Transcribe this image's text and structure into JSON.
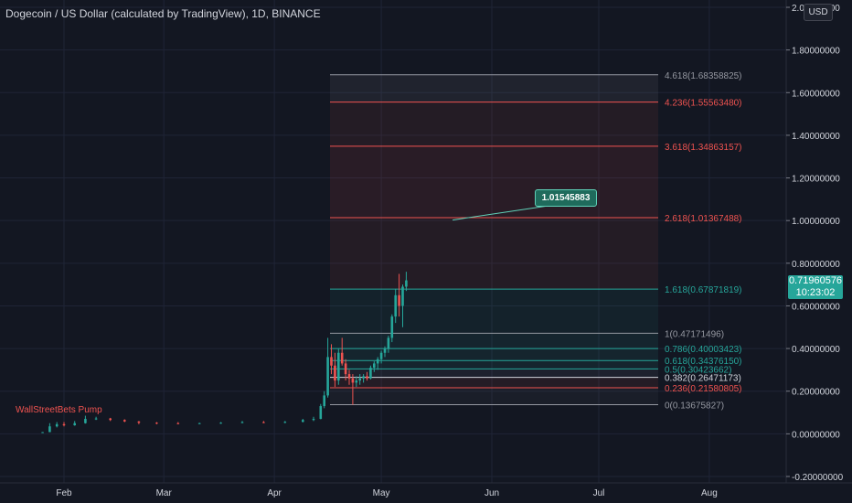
{
  "header": {
    "title": "Dogecoin / US Dollar (calculated by TradingView), 1D, BINANCE",
    "currency_button": "USD"
  },
  "current_price": {
    "value": "0.71960576",
    "countdown": "10:23:02"
  },
  "callout": {
    "label": "1.01545883",
    "value": 1.01545883
  },
  "annotations": [
    {
      "text": "WallStreetBets Pump",
      "value": 0.07
    }
  ],
  "colors": {
    "background": "#131722",
    "text": "#d1d4dc",
    "candle_up": "#26a69a",
    "candle_down": "#ef5350",
    "fib_red": "#ef5350",
    "fib_teal": "#26a69a",
    "fib_grey": "#9598a1"
  },
  "chart_data": {
    "type": "candlestick",
    "title": "Dogecoin / US Dollar (calculated by TradingView), 1D, BINANCE",
    "ylim": [
      -0.2,
      2.0
    ],
    "y_ticks": [
      {
        "value": 2.0,
        "label": "2.00000000"
      },
      {
        "value": 1.8,
        "label": "1.80000000"
      },
      {
        "value": 1.6,
        "label": "1.60000000"
      },
      {
        "value": 1.4,
        "label": "1.40000000"
      },
      {
        "value": 1.2,
        "label": "1.20000000"
      },
      {
        "value": 1.0,
        "label": "1.00000000"
      },
      {
        "value": 0.8,
        "label": "0.80000000"
      },
      {
        "value": 0.6,
        "label": "0.60000000"
      },
      {
        "value": 0.4,
        "label": "0.40000000"
      },
      {
        "value": 0.2,
        "label": "0.20000000"
      },
      {
        "value": 0.0,
        "label": "0.00000000"
      },
      {
        "value": -0.2,
        "label": "-0.20000000"
      }
    ],
    "x_ticks": [
      "Feb",
      "Mar",
      "Apr",
      "May",
      "Jun",
      "Jul",
      "Aug"
    ],
    "grid": true,
    "candles": [
      {
        "date": "2021-01-26",
        "o": 0.0075,
        "h": 0.0085,
        "l": 0.0072,
        "c": 0.008
      },
      {
        "date": "2021-01-28",
        "o": 0.008,
        "h": 0.05,
        "l": 0.0078,
        "c": 0.035
      },
      {
        "date": "2021-01-30",
        "o": 0.035,
        "h": 0.055,
        "l": 0.03,
        "c": 0.045
      },
      {
        "date": "2021-02-01",
        "o": 0.045,
        "h": 0.055,
        "l": 0.035,
        "c": 0.04
      },
      {
        "date": "2021-02-04",
        "o": 0.04,
        "h": 0.06,
        "l": 0.038,
        "c": 0.05
      },
      {
        "date": "2021-02-07",
        "o": 0.05,
        "h": 0.085,
        "l": 0.048,
        "c": 0.07
      },
      {
        "date": "2021-02-10",
        "o": 0.07,
        "h": 0.08,
        "l": 0.065,
        "c": 0.072
      },
      {
        "date": "2021-02-14",
        "o": 0.072,
        "h": 0.075,
        "l": 0.06,
        "c": 0.065
      },
      {
        "date": "2021-02-18",
        "o": 0.065,
        "h": 0.068,
        "l": 0.055,
        "c": 0.058
      },
      {
        "date": "2021-02-22",
        "o": 0.058,
        "h": 0.06,
        "l": 0.045,
        "c": 0.052
      },
      {
        "date": "2021-02-27",
        "o": 0.052,
        "h": 0.055,
        "l": 0.045,
        "c": 0.05
      },
      {
        "date": "2021-03-05",
        "o": 0.05,
        "h": 0.055,
        "l": 0.045,
        "c": 0.048
      },
      {
        "date": "2021-03-11",
        "o": 0.048,
        "h": 0.052,
        "l": 0.046,
        "c": 0.05
      },
      {
        "date": "2021-03-17",
        "o": 0.05,
        "h": 0.055,
        "l": 0.047,
        "c": 0.052
      },
      {
        "date": "2021-03-23",
        "o": 0.052,
        "h": 0.06,
        "l": 0.05,
        "c": 0.055
      },
      {
        "date": "2021-03-29",
        "o": 0.055,
        "h": 0.06,
        "l": 0.05,
        "c": 0.053
      },
      {
        "date": "2021-04-04",
        "o": 0.053,
        "h": 0.06,
        "l": 0.05,
        "c": 0.056
      },
      {
        "date": "2021-04-09",
        "o": 0.056,
        "h": 0.07,
        "l": 0.054,
        "c": 0.065
      },
      {
        "date": "2021-04-12",
        "o": 0.065,
        "h": 0.08,
        "l": 0.06,
        "c": 0.07
      },
      {
        "date": "2021-04-14",
        "o": 0.07,
        "h": 0.14,
        "l": 0.068,
        "c": 0.13
      },
      {
        "date": "2021-04-15",
        "o": 0.13,
        "h": 0.2,
        "l": 0.12,
        "c": 0.18
      },
      {
        "date": "2021-04-16",
        "o": 0.18,
        "h": 0.45,
        "l": 0.17,
        "c": 0.36
      },
      {
        "date": "2021-04-17",
        "o": 0.36,
        "h": 0.42,
        "l": 0.28,
        "c": 0.32
      },
      {
        "date": "2021-04-18",
        "o": 0.32,
        "h": 0.38,
        "l": 0.22,
        "c": 0.25
      },
      {
        "date": "2021-04-19",
        "o": 0.25,
        "h": 0.4,
        "l": 0.23,
        "c": 0.38
      },
      {
        "date": "2021-04-20",
        "o": 0.38,
        "h": 0.45,
        "l": 0.32,
        "c": 0.33
      },
      {
        "date": "2021-04-21",
        "o": 0.33,
        "h": 0.35,
        "l": 0.25,
        "c": 0.28
      },
      {
        "date": "2021-04-22",
        "o": 0.28,
        "h": 0.3,
        "l": 0.23,
        "c": 0.26
      },
      {
        "date": "2021-04-23",
        "o": 0.26,
        "h": 0.28,
        "l": 0.1367,
        "c": 0.24
      },
      {
        "date": "2021-04-24",
        "o": 0.24,
        "h": 0.27,
        "l": 0.22,
        "c": 0.25
      },
      {
        "date": "2021-04-25",
        "o": 0.25,
        "h": 0.28,
        "l": 0.23,
        "c": 0.26
      },
      {
        "date": "2021-04-26",
        "o": 0.26,
        "h": 0.28,
        "l": 0.24,
        "c": 0.27
      },
      {
        "date": "2021-04-27",
        "o": 0.27,
        "h": 0.29,
        "l": 0.25,
        "c": 0.26
      },
      {
        "date": "2021-04-28",
        "o": 0.26,
        "h": 0.32,
        "l": 0.255,
        "c": 0.31
      },
      {
        "date": "2021-04-29",
        "o": 0.31,
        "h": 0.34,
        "l": 0.29,
        "c": 0.33
      },
      {
        "date": "2021-04-30",
        "o": 0.33,
        "h": 0.36,
        "l": 0.3,
        "c": 0.35
      },
      {
        "date": "2021-05-01",
        "o": 0.35,
        "h": 0.39,
        "l": 0.33,
        "c": 0.38
      },
      {
        "date": "2021-05-02",
        "o": 0.38,
        "h": 0.41,
        "l": 0.36,
        "c": 0.4
      },
      {
        "date": "2021-05-03",
        "o": 0.4,
        "h": 0.46,
        "l": 0.38,
        "c": 0.45
      },
      {
        "date": "2021-05-04",
        "o": 0.45,
        "h": 0.56,
        "l": 0.43,
        "c": 0.55
      },
      {
        "date": "2021-05-05",
        "o": 0.55,
        "h": 0.68,
        "l": 0.52,
        "c": 0.65
      },
      {
        "date": "2021-05-06",
        "o": 0.65,
        "h": 0.75,
        "l": 0.55,
        "c": 0.6
      },
      {
        "date": "2021-05-07",
        "o": 0.6,
        "h": 0.7,
        "l": 0.5,
        "c": 0.69
      },
      {
        "date": "2021-05-08",
        "o": 0.69,
        "h": 0.76,
        "l": 0.67,
        "c": 0.7196
      }
    ],
    "fib_levels": [
      {
        "label": "4.618(1.68358825)",
        "ratio": 4.618,
        "value": 1.68358825,
        "color": "#9598a1"
      },
      {
        "label": "4.236(1.55563480)",
        "ratio": 4.236,
        "value": 1.5556348,
        "color": "#ef5350"
      },
      {
        "label": "3.618(1.34863157)",
        "ratio": 3.618,
        "value": 1.34863157,
        "color": "#ef5350"
      },
      {
        "label": "2.618(1.01367488)",
        "ratio": 2.618,
        "value": 1.01367488,
        "color": "#ef5350"
      },
      {
        "label": "1.618(0.67871819)",
        "ratio": 1.618,
        "value": 0.67871819,
        "color": "#26a69a"
      },
      {
        "label": "1(0.47171496)",
        "ratio": 1,
        "value": 0.47171496,
        "color": "#9598a1"
      },
      {
        "label": "0.786(0.40003423)",
        "ratio": 0.786,
        "value": 0.40003423,
        "color": "#26a69a"
      },
      {
        "label": "0.618(0.34376150)",
        "ratio": 0.618,
        "value": 0.3437615,
        "color": "#26a69a"
      },
      {
        "label": "0.5(0.30423662)",
        "ratio": 0.5,
        "value": 0.30423662,
        "color": "#26a69a"
      },
      {
        "label": "0.382(0.26471173)",
        "ratio": 0.382,
        "value": 0.26471173,
        "color": "#d1d4dc"
      },
      {
        "label": "0.236(0.21580805)",
        "ratio": 0.236,
        "value": 0.21580805,
        "color": "#ef5350"
      },
      {
        "label": "0(0.13675827)",
        "ratio": 0,
        "value": 0.13675827,
        "color": "#9598a1"
      }
    ]
  }
}
